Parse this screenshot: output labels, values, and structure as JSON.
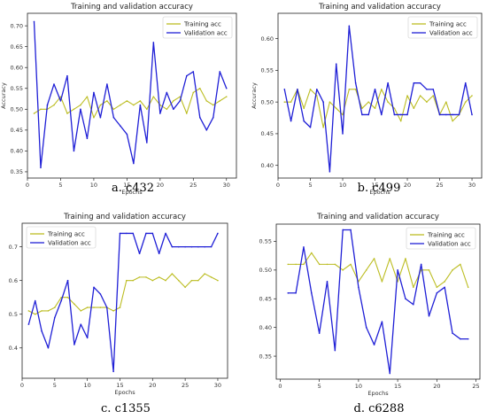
{
  "colors": {
    "train": "#bcbd22",
    "val": "#1f1fd6"
  },
  "chart_data": [
    {
      "type": "line",
      "title": "Training and validation accuracy",
      "xlabel": "Epochs",
      "ylabel": "Accuracy",
      "caption": "a. c432",
      "xlim": [
        0,
        31.5
      ],
      "ylim": [
        0.335,
        0.73
      ],
      "xticks": [
        0,
        5,
        10,
        15,
        20,
        25,
        30
      ],
      "yticks": [
        0.35,
        0.4,
        0.45,
        0.5,
        0.55,
        0.6,
        0.65,
        0.7
      ],
      "ytick_labels": [
        "0.35",
        "0.40",
        "0.45",
        "0.50",
        "0.55",
        "0.60",
        "0.65",
        "0.70"
      ],
      "legend": [
        "Training acc",
        "Validation acc"
      ],
      "legend_position": "top-right",
      "x": [
        1,
        2,
        3,
        4,
        5,
        6,
        7,
        8,
        9,
        10,
        11,
        12,
        13,
        14,
        15,
        16,
        17,
        18,
        19,
        20,
        21,
        22,
        23,
        24,
        25,
        26,
        27,
        28,
        29,
        30
      ],
      "series": [
        {
          "name": "Training acc",
          "values": [
            0.49,
            0.5,
            0.5,
            0.51,
            0.53,
            0.49,
            0.5,
            0.51,
            0.53,
            0.48,
            0.51,
            0.52,
            0.5,
            0.51,
            0.52,
            0.51,
            0.52,
            0.5,
            0.53,
            0.51,
            0.5,
            0.52,
            0.53,
            0.49,
            0.54,
            0.55,
            0.52,
            0.51,
            0.52,
            0.53
          ]
        },
        {
          "name": "Validation acc",
          "values": [
            0.71,
            0.36,
            0.51,
            0.56,
            0.52,
            0.58,
            0.4,
            0.5,
            0.43,
            0.54,
            0.48,
            0.56,
            0.48,
            0.46,
            0.44,
            0.37,
            0.51,
            0.42,
            0.66,
            0.49,
            0.54,
            0.5,
            0.52,
            0.58,
            0.59,
            0.48,
            0.45,
            0.48,
            0.59,
            0.55
          ]
        }
      ]
    },
    {
      "type": "line",
      "title": "Training and validation accuracy",
      "xlabel": "Epochs",
      "ylabel": "Accuracy",
      "caption": "b. c499",
      "xlim": [
        0,
        31.5
      ],
      "ylim": [
        0.38,
        0.64
      ],
      "xticks": [
        0,
        5,
        10,
        15,
        20,
        25,
        30
      ],
      "yticks": [
        0.4,
        0.45,
        0.5,
        0.55,
        0.6
      ],
      "ytick_labels": [
        "0.40",
        "0.45",
        "0.50",
        "0.55",
        "0.60"
      ],
      "legend": [
        "Training acc",
        "Validation acc"
      ],
      "legend_position": "top-right",
      "x": [
        1,
        2,
        3,
        4,
        5,
        6,
        7,
        8,
        9,
        10,
        11,
        12,
        13,
        14,
        15,
        16,
        17,
        18,
        19,
        20,
        21,
        22,
        23,
        24,
        25,
        26,
        27,
        28,
        29,
        30
      ],
      "series": [
        {
          "name": "Training acc",
          "values": [
            0.5,
            0.5,
            0.52,
            0.49,
            0.52,
            0.51,
            0.46,
            0.5,
            0.49,
            0.48,
            0.52,
            0.52,
            0.49,
            0.5,
            0.49,
            0.52,
            0.5,
            0.49,
            0.47,
            0.51,
            0.49,
            0.51,
            0.5,
            0.51,
            0.48,
            0.5,
            0.47,
            0.48,
            0.5,
            0.51
          ]
        },
        {
          "name": "Validation acc",
          "values": [
            0.52,
            0.47,
            0.52,
            0.47,
            0.46,
            0.52,
            0.5,
            0.39,
            0.56,
            0.45,
            0.62,
            0.53,
            0.48,
            0.48,
            0.52,
            0.48,
            0.53,
            0.48,
            0.48,
            0.48,
            0.53,
            0.53,
            0.52,
            0.52,
            0.48,
            0.48,
            0.48,
            0.48,
            0.53,
            0.48
          ]
        }
      ]
    },
    {
      "type": "line",
      "title": "Training and validation accuracy",
      "xlabel": "Epochs",
      "ylabel": "",
      "caption": "c. c1355",
      "xlim": [
        0,
        31.5
      ],
      "ylim": [
        0.31,
        0.77
      ],
      "xticks": [
        0,
        5,
        10,
        15,
        20,
        25,
        30
      ],
      "yticks": [
        0.4,
        0.5,
        0.6,
        0.7
      ],
      "ytick_labels": [
        "0.4",
        "0.5",
        "0.6",
        "0.7"
      ],
      "legend": [
        "Training acc",
        "Validation acc"
      ],
      "legend_position": "top-left",
      "x": [
        1,
        2,
        3,
        4,
        5,
        6,
        7,
        8,
        9,
        10,
        11,
        12,
        13,
        14,
        15,
        16,
        17,
        18,
        19,
        20,
        21,
        22,
        23,
        24,
        25,
        26,
        27,
        28,
        29,
        30
      ],
      "series": [
        {
          "name": "Training acc",
          "values": [
            0.51,
            0.5,
            0.51,
            0.51,
            0.52,
            0.55,
            0.55,
            0.53,
            0.51,
            0.52,
            0.52,
            0.52,
            0.52,
            0.51,
            0.52,
            0.6,
            0.6,
            0.61,
            0.61,
            0.6,
            0.61,
            0.6,
            0.62,
            0.6,
            0.58,
            0.6,
            0.6,
            0.62,
            0.61,
            0.6
          ]
        },
        {
          "name": "Validation acc",
          "values": [
            0.47,
            0.54,
            0.45,
            0.4,
            0.49,
            0.54,
            0.6,
            0.41,
            0.47,
            0.43,
            0.58,
            0.56,
            0.52,
            0.33,
            0.74,
            0.74,
            0.74,
            0.68,
            0.74,
            0.74,
            0.68,
            0.74,
            0.7,
            0.7,
            0.7,
            0.7,
            0.7,
            0.7,
            0.7,
            0.74
          ]
        }
      ]
    },
    {
      "type": "line",
      "title": "Training and validation accuracy",
      "xlabel": "Epochs",
      "ylabel": "",
      "caption": "d. c6288",
      "xlim": [
        -0.5,
        25.5
      ],
      "ylim": [
        0.31,
        0.58
      ],
      "xticks": [
        0,
        5,
        10,
        15,
        20,
        25
      ],
      "yticks": [
        0.35,
        0.4,
        0.45,
        0.5,
        0.55
      ],
      "ytick_labels": [
        "0.35",
        "0.40",
        "0.45",
        "0.50",
        "0.55"
      ],
      "legend": [
        "Training acc",
        "Validation acc"
      ],
      "legend_position": "top-right",
      "x": [
        1,
        2,
        3,
        4,
        5,
        6,
        7,
        8,
        9,
        10,
        11,
        12,
        13,
        14,
        15,
        16,
        17,
        18,
        19,
        20,
        21,
        22,
        23,
        24
      ],
      "series": [
        {
          "name": "Training acc",
          "values": [
            0.51,
            0.51,
            0.51,
            0.53,
            0.51,
            0.51,
            0.51,
            0.5,
            0.51,
            0.48,
            0.5,
            0.52,
            0.48,
            0.52,
            0.48,
            0.52,
            0.47,
            0.5,
            0.5,
            0.47,
            0.48,
            0.5,
            0.51,
            0.47
          ]
        },
        {
          "name": "Validation acc",
          "values": [
            0.46,
            0.46,
            0.54,
            0.46,
            0.39,
            0.48,
            0.36,
            0.57,
            0.57,
            0.47,
            0.4,
            0.37,
            0.41,
            0.32,
            0.5,
            0.45,
            0.44,
            0.51,
            0.42,
            0.46,
            0.47,
            0.39,
            0.38,
            0.38
          ]
        }
      ]
    }
  ]
}
